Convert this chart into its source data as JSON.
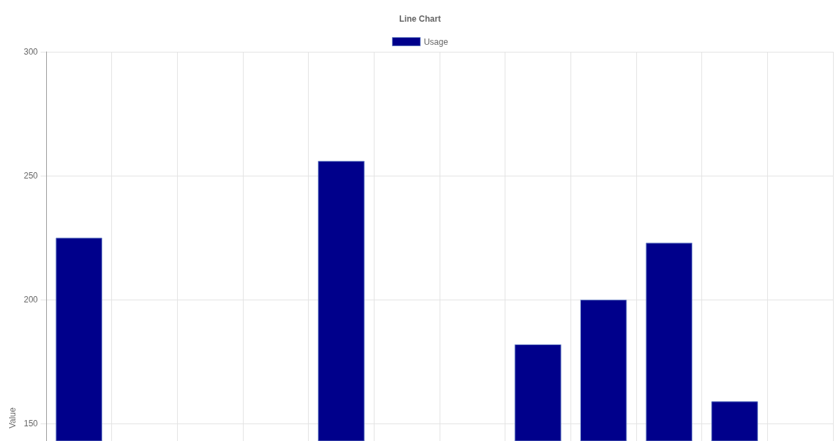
{
  "chart_data": {
    "type": "bar",
    "title": "Line Chart",
    "ylabel": "Value",
    "categories": [
      null,
      null,
      null,
      null,
      null,
      null,
      null,
      null,
      null,
      null,
      null,
      null
    ],
    "series": [
      {
        "name": "Usage",
        "color": "#00008b",
        "values": [
          225,
          null,
          null,
          null,
          256,
          null,
          null,
          182,
          200,
          223,
          159,
          null
        ]
      }
    ],
    "ylim": [
      143,
      300
    ],
    "yticks": [
      150,
      200,
      250,
      300
    ],
    "grid": true,
    "legend": "top"
  }
}
